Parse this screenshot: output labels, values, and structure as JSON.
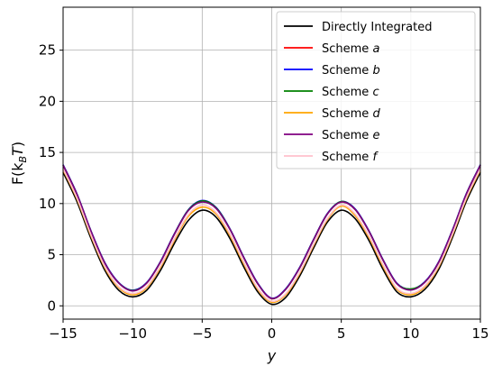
{
  "chart_data": {
    "type": "line",
    "xlabel": "y",
    "ylabel_main": "F(k",
    "ylabel_sub": "B",
    "ylabel_italic": "T",
    "ylabel_close": ")",
    "xlim": [
      -15,
      15
    ],
    "ylim": [
      -1.3,
      29.2
    ],
    "xticks": [
      -15,
      -10,
      -5,
      0,
      5,
      10,
      15
    ],
    "xtick_labels": [
      "−15",
      "−10",
      "−5",
      "0",
      "5",
      "10",
      "15"
    ],
    "yticks": [
      0,
      5,
      10,
      15,
      20,
      25
    ],
    "ytick_labels": [
      "0",
      "5",
      "10",
      "15",
      "20",
      "25"
    ],
    "grid": true,
    "legend_position": "top-right",
    "x": [
      -15,
      -14,
      -13,
      -12,
      -11,
      -10,
      -9,
      -8,
      -7,
      -6,
      -5,
      -4,
      -3,
      -2,
      -1,
      0,
      1,
      2,
      3,
      4,
      5,
      6,
      7,
      8,
      9,
      10,
      11,
      12,
      13,
      14,
      15
    ],
    "series": [
      {
        "name": "Directly Integrated",
        "style": "plain",
        "color": "#000000",
        "values": [
          13.05,
          10.19,
          6.6,
          3.48,
          1.53,
          0.88,
          1.51,
          3.46,
          6.1,
          8.34,
          9.35,
          8.67,
          6.57,
          3.78,
          1.35,
          0.15,
          0.81,
          2.89,
          5.63,
          8.18,
          9.35,
          8.52,
          6.36,
          3.57,
          1.36,
          0.88,
          1.6,
          3.55,
          6.7,
          10.25,
          13.05
        ]
      },
      {
        "name": "Scheme ",
        "style": "italic",
        "suffix": "a",
        "color": "#ff0000",
        "values": [
          13.75,
          10.89,
          7.3,
          4.18,
          2.23,
          1.48,
          2.21,
          4.28,
          7.0,
          9.34,
          10.25,
          9.57,
          7.47,
          4.68,
          2.15,
          0.7,
          1.61,
          3.69,
          6.43,
          8.98,
          10.15,
          9.42,
          7.26,
          4.47,
          2.16,
          1.58,
          2.3,
          4.25,
          7.4,
          10.95,
          13.75
        ]
      },
      {
        "name": "Scheme ",
        "style": "italic",
        "suffix": "b",
        "color": "#0000ff",
        "values": [
          13.8,
          10.94,
          7.35,
          4.23,
          2.28,
          1.53,
          2.26,
          4.33,
          7.05,
          9.39,
          10.3,
          9.62,
          7.52,
          4.73,
          2.2,
          0.75,
          1.66,
          3.74,
          6.48,
          9.03,
          10.2,
          9.47,
          7.31,
          4.52,
          2.21,
          1.63,
          2.35,
          4.3,
          7.45,
          11.0,
          13.8
        ]
      },
      {
        "name": "Scheme ",
        "style": "italic",
        "suffix": "c",
        "color": "#008000",
        "values": [
          13.76,
          10.9,
          7.31,
          4.19,
          2.24,
          1.5,
          2.22,
          4.29,
          7.01,
          9.35,
          10.26,
          9.58,
          7.48,
          4.69,
          2.16,
          0.72,
          1.62,
          3.7,
          6.44,
          8.99,
          10.2,
          9.43,
          7.27,
          4.48,
          2.17,
          1.65,
          2.31,
          4.26,
          7.41,
          10.96,
          13.76
        ]
      },
      {
        "name": "Scheme ",
        "style": "italic",
        "suffix": "d",
        "color": "#ffa500",
        "values": [
          13.3,
          10.44,
          6.85,
          3.73,
          1.78,
          1.08,
          1.76,
          3.76,
          6.4,
          8.74,
          9.65,
          8.97,
          6.87,
          4.08,
          1.6,
          0.35,
          1.06,
          3.14,
          5.88,
          8.43,
          9.75,
          8.82,
          6.66,
          3.87,
          1.61,
          1.08,
          1.85,
          3.8,
          6.95,
          10.5,
          13.3
        ]
      },
      {
        "name": "Scheme ",
        "style": "italic",
        "suffix": "e",
        "color": "#800080",
        "values": [
          13.75,
          10.89,
          7.3,
          4.18,
          2.23,
          1.46,
          2.21,
          4.28,
          7.0,
          9.3,
          10.15,
          9.52,
          7.47,
          4.68,
          2.15,
          0.72,
          1.61,
          3.69,
          6.43,
          8.98,
          10.15,
          9.42,
          7.26,
          4.47,
          2.16,
          1.55,
          2.3,
          4.25,
          7.4,
          10.95,
          13.75
        ]
      },
      {
        "name": "Scheme ",
        "style": "italic",
        "suffix": "f",
        "color": "#ffc0cb",
        "values": [
          13.4,
          10.54,
          6.95,
          3.83,
          1.88,
          1.2,
          1.86,
          3.88,
          6.55,
          8.9,
          9.85,
          9.12,
          7.02,
          4.23,
          1.7,
          0.45,
          1.16,
          3.24,
          5.98,
          8.53,
          9.85,
          8.97,
          6.81,
          4.02,
          1.71,
          1.2,
          1.95,
          3.9,
          7.05,
          10.6,
          13.4
        ]
      }
    ]
  }
}
